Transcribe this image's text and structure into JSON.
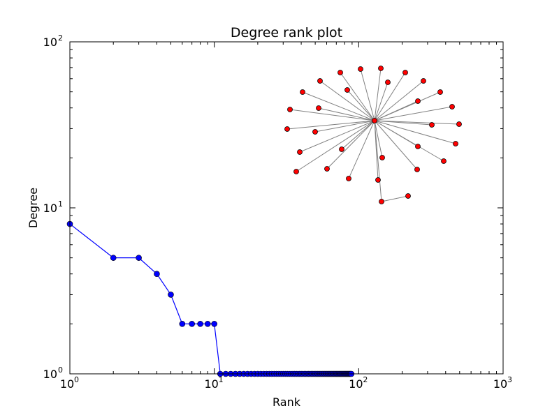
{
  "chart_data": {
    "type": "line",
    "title": "Degree rank plot",
    "xlabel": "Rank",
    "ylabel": "Degree",
    "xscale": "log",
    "yscale": "log",
    "xlim": [
      1,
      1000
    ],
    "ylim": [
      1,
      100
    ],
    "x_ticks": [
      {
        "base": "10",
        "exp": "0",
        "value": 1
      },
      {
        "base": "10",
        "exp": "1",
        "value": 10
      },
      {
        "base": "10",
        "exp": "2",
        "value": 100
      },
      {
        "base": "10",
        "exp": "3",
        "value": 1000
      }
    ],
    "y_ticks": [
      {
        "base": "10",
        "exp": "0",
        "value": 1
      },
      {
        "base": "10",
        "exp": "1",
        "value": 10
      },
      {
        "base": "10",
        "exp": "2",
        "value": 100
      }
    ],
    "grid": false,
    "legend": "none",
    "series": [
      {
        "color": "#0000ff",
        "marker": "circle",
        "degrees": [
          8,
          5,
          5,
          4,
          3,
          2,
          2,
          2,
          2,
          2,
          1,
          1,
          1,
          1,
          1,
          1,
          1,
          1,
          1,
          1,
          1,
          1,
          1,
          1,
          1,
          1,
          1,
          1,
          1,
          1,
          1,
          1,
          1,
          1,
          1,
          1,
          1,
          1,
          1,
          1,
          1,
          1,
          1,
          1,
          1,
          1,
          1,
          1,
          1,
          1,
          1,
          1,
          1,
          1,
          1,
          1,
          1,
          1,
          1,
          1,
          1,
          1,
          1,
          1,
          1,
          1,
          1,
          1,
          1,
          1,
          1,
          1,
          1,
          1,
          1,
          1,
          1,
          1,
          1,
          1,
          1,
          1,
          1,
          1,
          1,
          1,
          1,
          1,
          1
        ]
      }
    ],
    "inset": {
      "type": "network-graph",
      "description_nodes": 36,
      "node_color": "#ff0000",
      "edge_color": "#808080"
    }
  }
}
